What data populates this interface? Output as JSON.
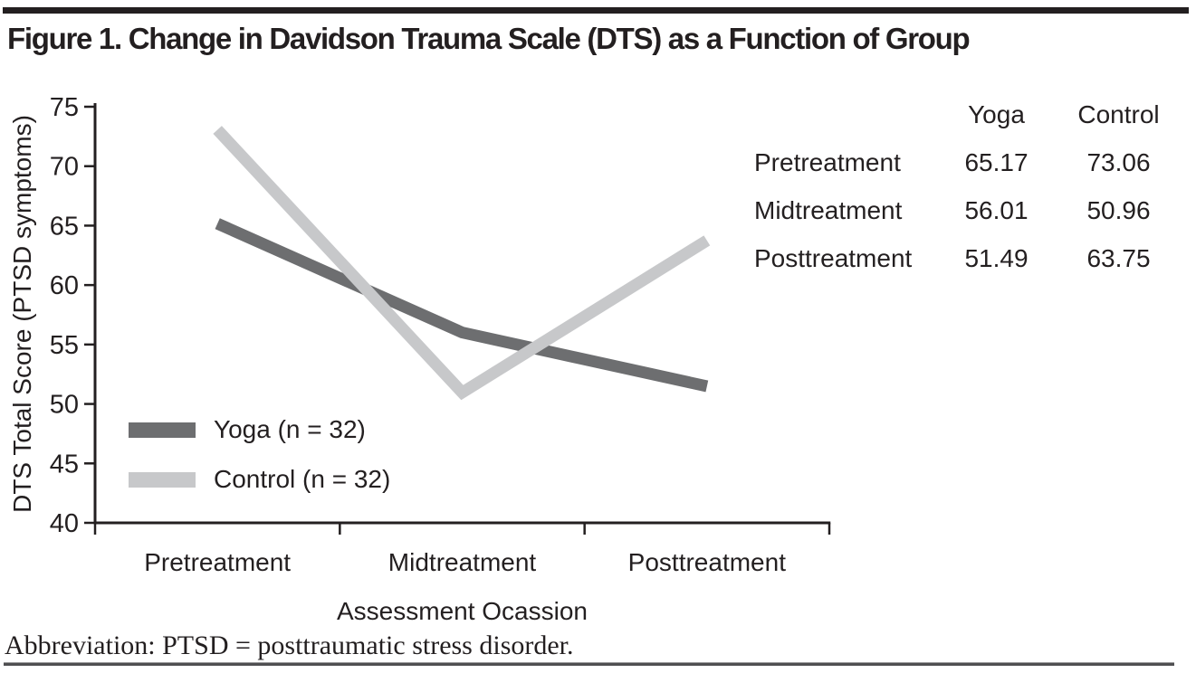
{
  "title": "Figure 1. Change in Davidson Trauma Scale (DTS) as a Function of Group",
  "footnote": "Abbreviation: PTSD = posttraumatic stress disorder.",
  "colors": {
    "text": "#231f20",
    "axis": "#231f20",
    "yoga_line": "#6d6e70",
    "control_line": "#c7c8ca"
  },
  "chart_data": {
    "type": "line",
    "categories": [
      "Pretreatment",
      "Midtreatment",
      "Posttreatment"
    ],
    "series": [
      {
        "name": "Yoga",
        "legend_label": "Yoga (n = 32)",
        "values": [
          65.17,
          56.01,
          51.49
        ],
        "color": "#6d6e70"
      },
      {
        "name": "Control",
        "legend_label": "Control (n = 32)",
        "values": [
          73.06,
          50.96,
          63.75
        ],
        "color": "#c7c8ca"
      }
    ],
    "xlabel": "Assessment Ocassion",
    "ylabel": "DTS Total Score (PTSD symptoms)",
    "ylim": [
      40,
      75
    ],
    "yticks": [
      75,
      70,
      65,
      60,
      55,
      50,
      45,
      40
    ],
    "grid": false,
    "legend_position": "inside-lower-left"
  },
  "side_table": {
    "col_headers": [
      "Yoga",
      "Control"
    ],
    "rows": [
      {
        "label": "Pretreatment",
        "values": [
          "65.17",
          "73.06"
        ]
      },
      {
        "label": "Midtreatment",
        "values": [
          "56.01",
          "50.96"
        ]
      },
      {
        "label": "Posttreatment",
        "values": [
          "51.49",
          "63.75"
        ]
      }
    ]
  }
}
